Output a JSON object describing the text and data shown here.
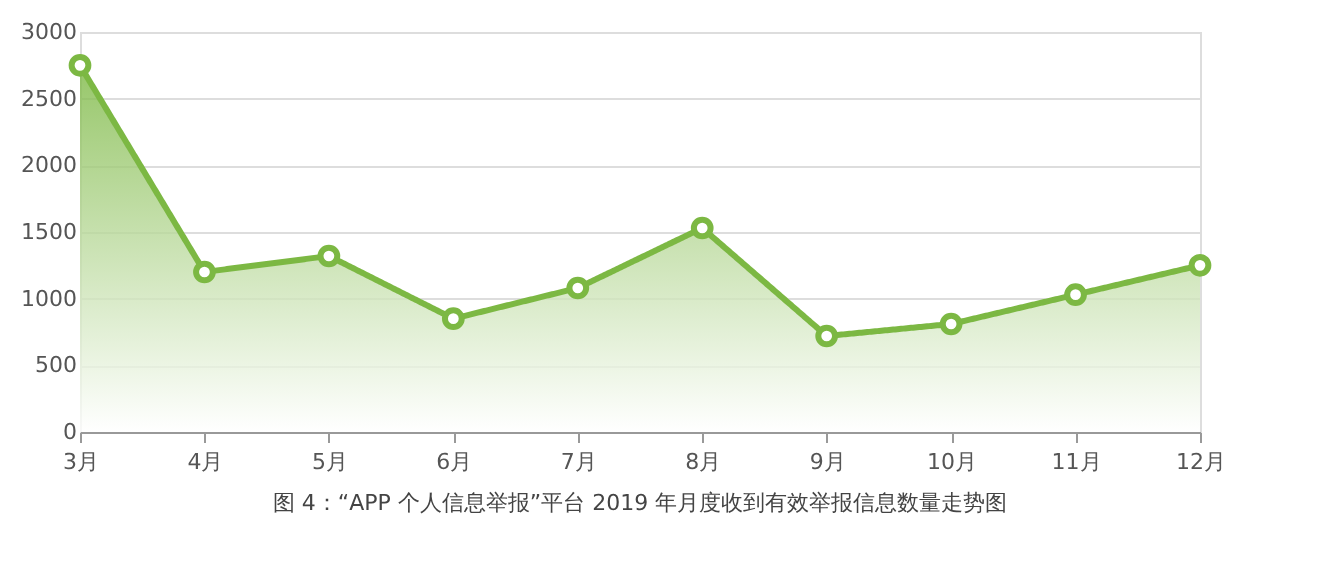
{
  "chart_data": {
    "type": "area",
    "categories": [
      "3月",
      "4月",
      "5月",
      "6月",
      "7月",
      "8月",
      "9月",
      "10月",
      "11月",
      "12月"
    ],
    "series": [
      {
        "color": "#7cb843",
        "values": [
          2750,
          1200,
          1320,
          850,
          1080,
          1530,
          720,
          810,
          1030,
          1250
        ]
      }
    ],
    "ylim": [
      0,
      3000
    ],
    "yticks": [
      0,
      500,
      1000,
      1500,
      2000,
      2500,
      3000
    ],
    "grid": "y",
    "marker": "circle",
    "line_style": "solid",
    "annotations": [
      "图 4：“APP 个人信息举报”平台 2019 年月度收到有效举报信息数量走势图"
    ]
  }
}
